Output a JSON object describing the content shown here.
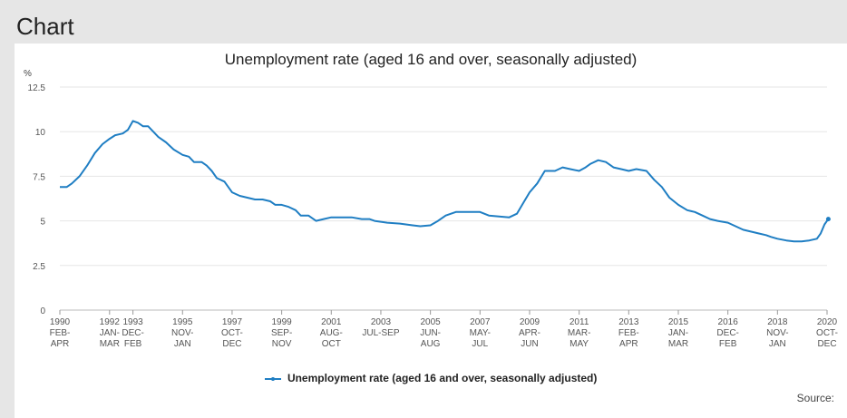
{
  "section_title": "Chart",
  "source_label": "Source:",
  "chart_data": {
    "type": "line",
    "title": "Unemployment rate (aged 16 and over, seasonally adjusted)",
    "ylabel": "%",
    "ylim": [
      0,
      12.5
    ],
    "yticks": [
      "0",
      "2.5",
      "5",
      "7.5",
      "10",
      "12.5"
    ],
    "grid": true,
    "legend_position": "bottom",
    "color": "#1f7ec3",
    "xticks": [
      {
        "x": 1990.125,
        "year": "1990",
        "period": "FEB-\nAPR"
      },
      {
        "x": 1992.08,
        "year": "1992",
        "period": "JAN-\nMAR"
      },
      {
        "x": 1993.0,
        "year": "1993",
        "period": "DEC-\nFEB"
      },
      {
        "x": 1994.95,
        "year": "1995",
        "period": "NOV-\nJAN"
      },
      {
        "x": 1996.9,
        "year": "1997",
        "period": "OCT-\nDEC"
      },
      {
        "x": 1998.85,
        "year": "1999",
        "period": "SEP-\nNOV"
      },
      {
        "x": 2000.8,
        "year": "2001",
        "period": "AUG-\nOCT"
      },
      {
        "x": 2002.75,
        "year": "2003",
        "period": "JUL-SEP"
      },
      {
        "x": 2004.7,
        "year": "2005",
        "period": "JUN-\nAUG"
      },
      {
        "x": 2006.65,
        "year": "2007",
        "period": "MAY-\nJUL"
      },
      {
        "x": 2008.6,
        "year": "2009",
        "period": "APR-\nJUN"
      },
      {
        "x": 2010.55,
        "year": "2011",
        "period": "MAR-\nMAY"
      },
      {
        "x": 2012.5,
        "year": "2013",
        "period": "FEB-\nAPR"
      },
      {
        "x": 2014.45,
        "year": "2015",
        "period": "JAN-\nMAR"
      },
      {
        "x": 2016.4,
        "year": "2016",
        "period": "DEC-\nFEB"
      },
      {
        "x": 2018.35,
        "year": "2018",
        "period": "NOV-\nJAN"
      },
      {
        "x": 2020.3,
        "year": "2020",
        "period": "OCT-\nDEC"
      }
    ],
    "series": [
      {
        "name": "Unemployment rate (aged 16 and over, seasonally adjusted)",
        "points": [
          [
            1990.125,
            6.9
          ],
          [
            1990.4,
            6.9
          ],
          [
            1990.6,
            7.1
          ],
          [
            1990.9,
            7.5
          ],
          [
            1991.2,
            8.1
          ],
          [
            1991.5,
            8.8
          ],
          [
            1991.8,
            9.3
          ],
          [
            1992.08,
            9.6
          ],
          [
            1992.3,
            9.8
          ],
          [
            1992.6,
            9.9
          ],
          [
            1992.8,
            10.1
          ],
          [
            1993.0,
            10.6
          ],
          [
            1993.2,
            10.5
          ],
          [
            1993.4,
            10.3
          ],
          [
            1993.6,
            10.3
          ],
          [
            1993.8,
            10.0
          ],
          [
            1994.0,
            9.7
          ],
          [
            1994.3,
            9.4
          ],
          [
            1994.6,
            9.0
          ],
          [
            1994.95,
            8.7
          ],
          [
            1995.2,
            8.6
          ],
          [
            1995.4,
            8.3
          ],
          [
            1995.7,
            8.3
          ],
          [
            1995.9,
            8.1
          ],
          [
            1996.1,
            7.8
          ],
          [
            1996.3,
            7.4
          ],
          [
            1996.6,
            7.2
          ],
          [
            1996.9,
            6.6
          ],
          [
            1997.2,
            6.4
          ],
          [
            1997.5,
            6.3
          ],
          [
            1997.8,
            6.2
          ],
          [
            1998.1,
            6.2
          ],
          [
            1998.4,
            6.1
          ],
          [
            1998.6,
            5.9
          ],
          [
            1998.85,
            5.9
          ],
          [
            1999.1,
            5.8
          ],
          [
            1999.4,
            5.6
          ],
          [
            1999.6,
            5.3
          ],
          [
            1999.9,
            5.3
          ],
          [
            2000.2,
            5.0
          ],
          [
            2000.5,
            5.1
          ],
          [
            2000.8,
            5.2
          ],
          [
            2001.2,
            5.2
          ],
          [
            2001.6,
            5.2
          ],
          [
            2002.0,
            5.1
          ],
          [
            2002.3,
            5.1
          ],
          [
            2002.5,
            5.0
          ],
          [
            2002.75,
            4.95
          ],
          [
            2003.0,
            4.9
          ],
          [
            2003.5,
            4.85
          ],
          [
            2004.0,
            4.75
          ],
          [
            2004.3,
            4.7
          ],
          [
            2004.7,
            4.75
          ],
          [
            2005.0,
            5.0
          ],
          [
            2005.3,
            5.3
          ],
          [
            2005.7,
            5.5
          ],
          [
            2006.1,
            5.5
          ],
          [
            2006.4,
            5.5
          ],
          [
            2006.65,
            5.5
          ],
          [
            2007.0,
            5.3
          ],
          [
            2007.4,
            5.25
          ],
          [
            2007.8,
            5.2
          ],
          [
            2008.1,
            5.4
          ],
          [
            2008.35,
            6.0
          ],
          [
            2008.6,
            6.6
          ],
          [
            2008.9,
            7.1
          ],
          [
            2009.2,
            7.8
          ],
          [
            2009.6,
            7.8
          ],
          [
            2009.9,
            8.0
          ],
          [
            2010.2,
            7.9
          ],
          [
            2010.55,
            7.8
          ],
          [
            2010.8,
            8.0
          ],
          [
            2011.0,
            8.2
          ],
          [
            2011.3,
            8.4
          ],
          [
            2011.6,
            8.3
          ],
          [
            2011.9,
            8.0
          ],
          [
            2012.2,
            7.9
          ],
          [
            2012.5,
            7.8
          ],
          [
            2012.8,
            7.9
          ],
          [
            2013.2,
            7.8
          ],
          [
            2013.5,
            7.3
          ],
          [
            2013.8,
            6.9
          ],
          [
            2014.1,
            6.3
          ],
          [
            2014.45,
            5.9
          ],
          [
            2014.8,
            5.6
          ],
          [
            2015.1,
            5.5
          ],
          [
            2015.4,
            5.3
          ],
          [
            2015.7,
            5.1
          ],
          [
            2016.0,
            5.0
          ],
          [
            2016.4,
            4.9
          ],
          [
            2016.7,
            4.7
          ],
          [
            2017.0,
            4.5
          ],
          [
            2017.3,
            4.4
          ],
          [
            2017.6,
            4.3
          ],
          [
            2017.9,
            4.2
          ],
          [
            2018.1,
            4.1
          ],
          [
            2018.35,
            4.0
          ],
          [
            2018.7,
            3.9
          ],
          [
            2019.0,
            3.85
          ],
          [
            2019.3,
            3.85
          ],
          [
            2019.6,
            3.9
          ],
          [
            2019.9,
            4.0
          ],
          [
            2020.05,
            4.3
          ],
          [
            2020.2,
            4.8
          ],
          [
            2020.35,
            5.1
          ]
        ]
      }
    ]
  }
}
